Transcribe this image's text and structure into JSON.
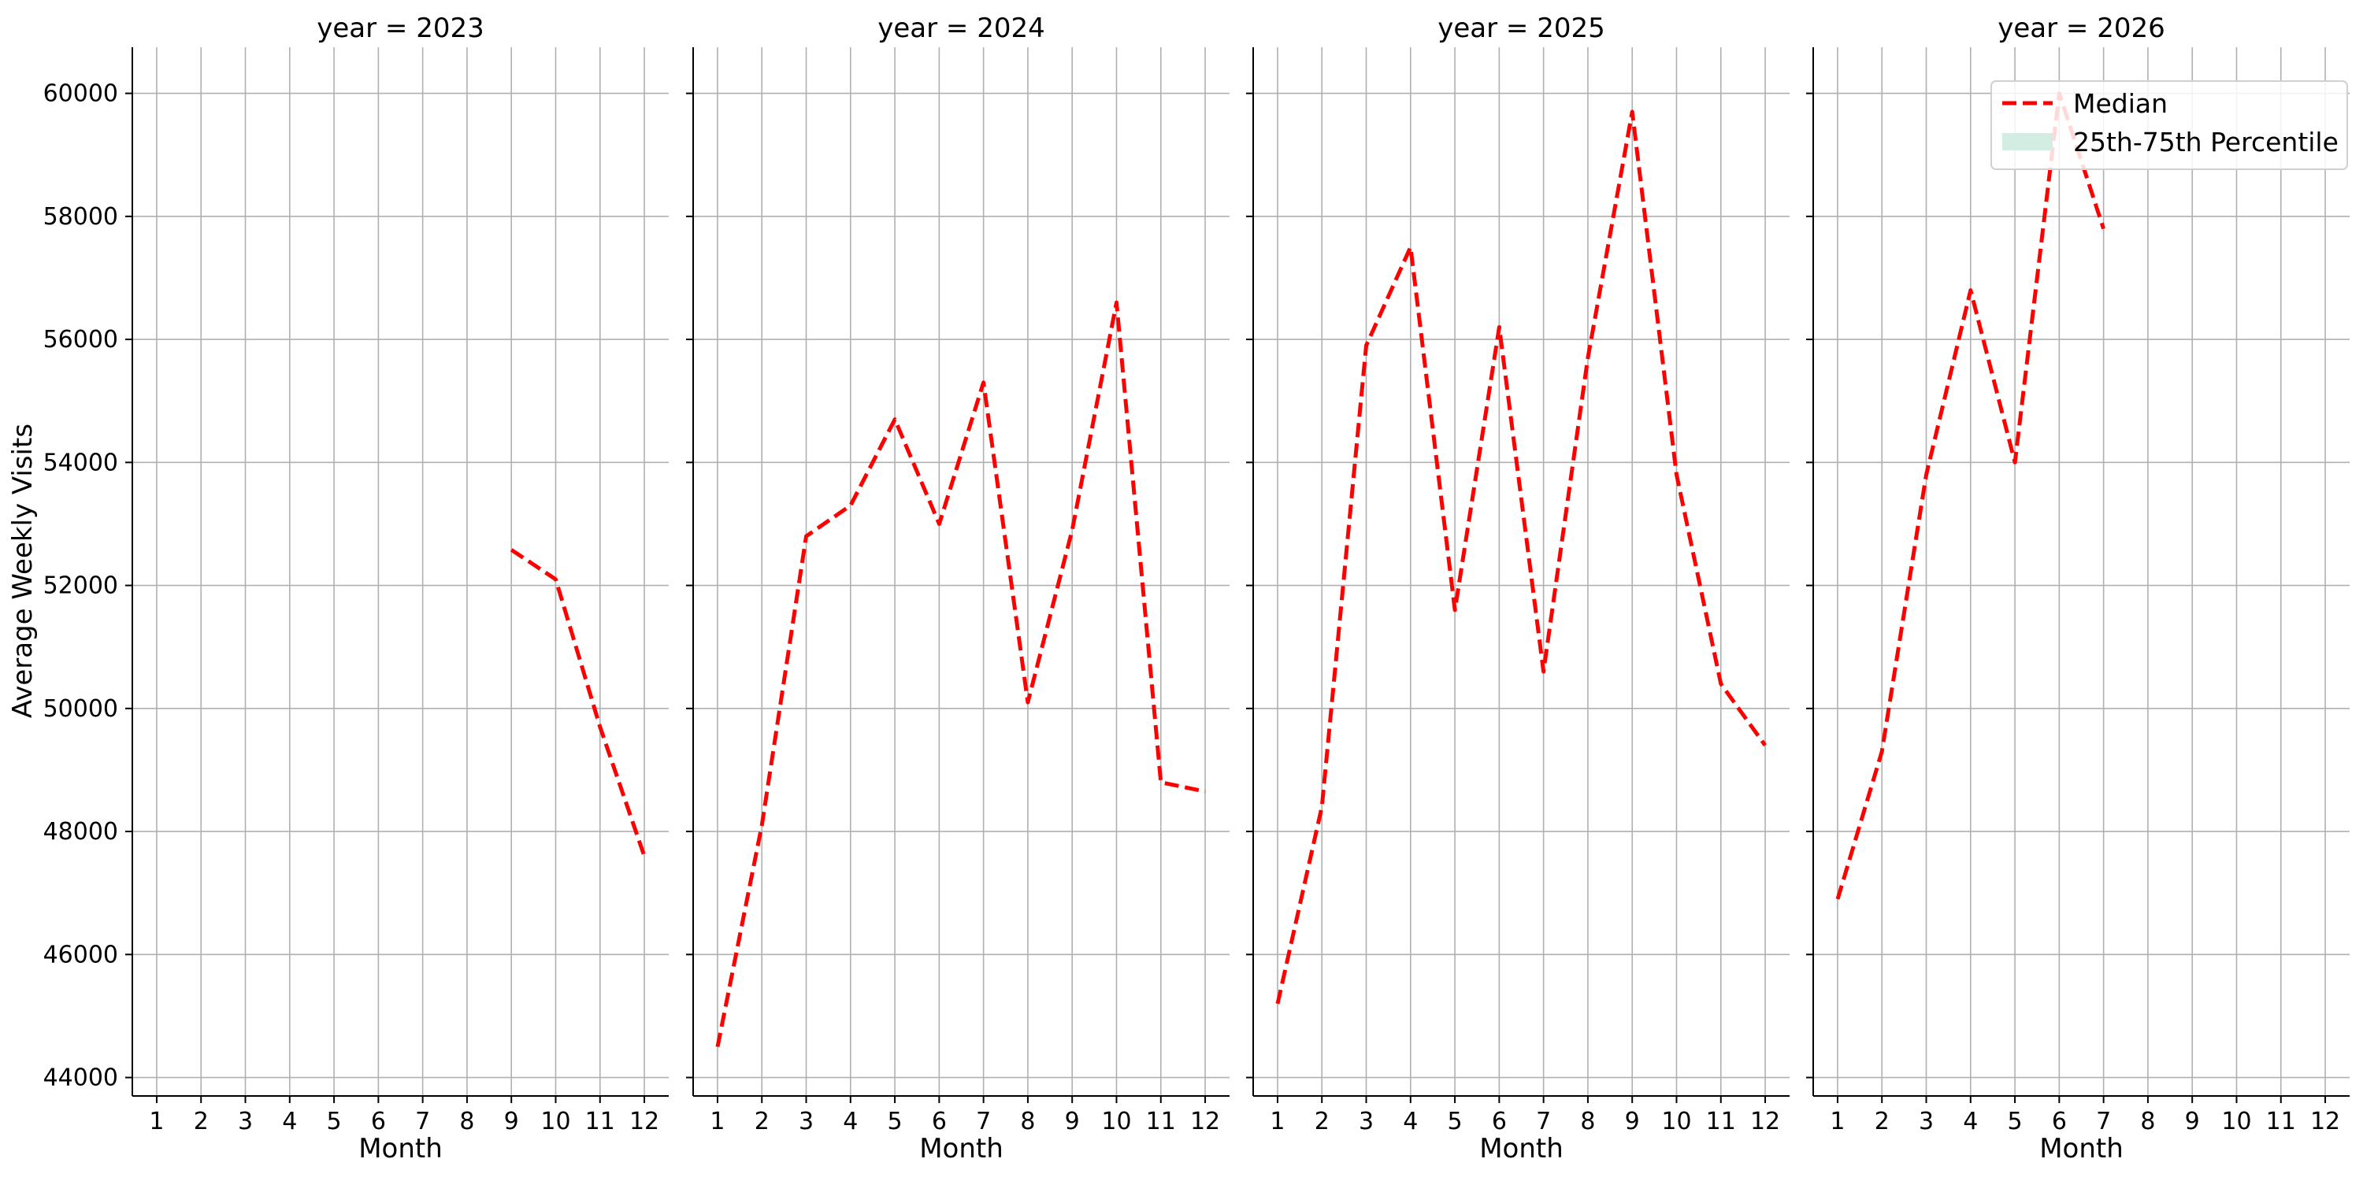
{
  "chart_data": {
    "type": "line",
    "ylabel": "Average Weekly Visits",
    "xlabel": "Month",
    "x_ticks": [
      1,
      2,
      3,
      4,
      5,
      6,
      7,
      8,
      9,
      10,
      11,
      12
    ],
    "y_ticks": [
      44000,
      46000,
      48000,
      50000,
      52000,
      54000,
      56000,
      58000,
      60000
    ],
    "ylim": [
      43700,
      60750
    ],
    "xlim": [
      0.45,
      12.55
    ],
    "grid": true,
    "legend": {
      "placement": "top-right",
      "entries": [
        "Median",
        "25th-75th Percentile"
      ]
    },
    "colors": {
      "median": "#ff0000",
      "percentile_band": "#d4ede3",
      "grid": "#b0b0b0"
    },
    "panels": [
      {
        "title": "year = 2023",
        "series": [
          {
            "name": "Median",
            "x": [
              9,
              10,
              11,
              12
            ],
            "y": [
              52580,
              52100,
              49700,
              47600
            ]
          }
        ]
      },
      {
        "title": "year = 2024",
        "series": [
          {
            "name": "Median",
            "x": [
              1,
              2,
              3,
              4,
              5,
              6,
              7,
              8,
              9,
              10,
              11,
              12
            ],
            "y": [
              44500,
              48100,
              52800,
              53300,
              54700,
              53000,
              55300,
              50100,
              52900,
              56600,
              48800,
              48650
            ]
          }
        ]
      },
      {
        "title": "year = 2025",
        "series": [
          {
            "name": "Median",
            "x": [
              1,
              2,
              3,
              4,
              5,
              6,
              7,
              8,
              9,
              10,
              11,
              12
            ],
            "y": [
              45200,
              48400,
              55900,
              57500,
              51600,
              56200,
              50600,
              55700,
              59700,
              53800,
              50400,
              49400
            ]
          }
        ]
      },
      {
        "title": "year = 2026",
        "series": [
          {
            "name": "Median",
            "x": [
              1,
              2,
              3,
              4,
              5,
              6,
              7
            ],
            "y": [
              46900,
              49300,
              53800,
              56800,
              54000,
              60000,
              57800
            ]
          }
        ]
      }
    ]
  }
}
